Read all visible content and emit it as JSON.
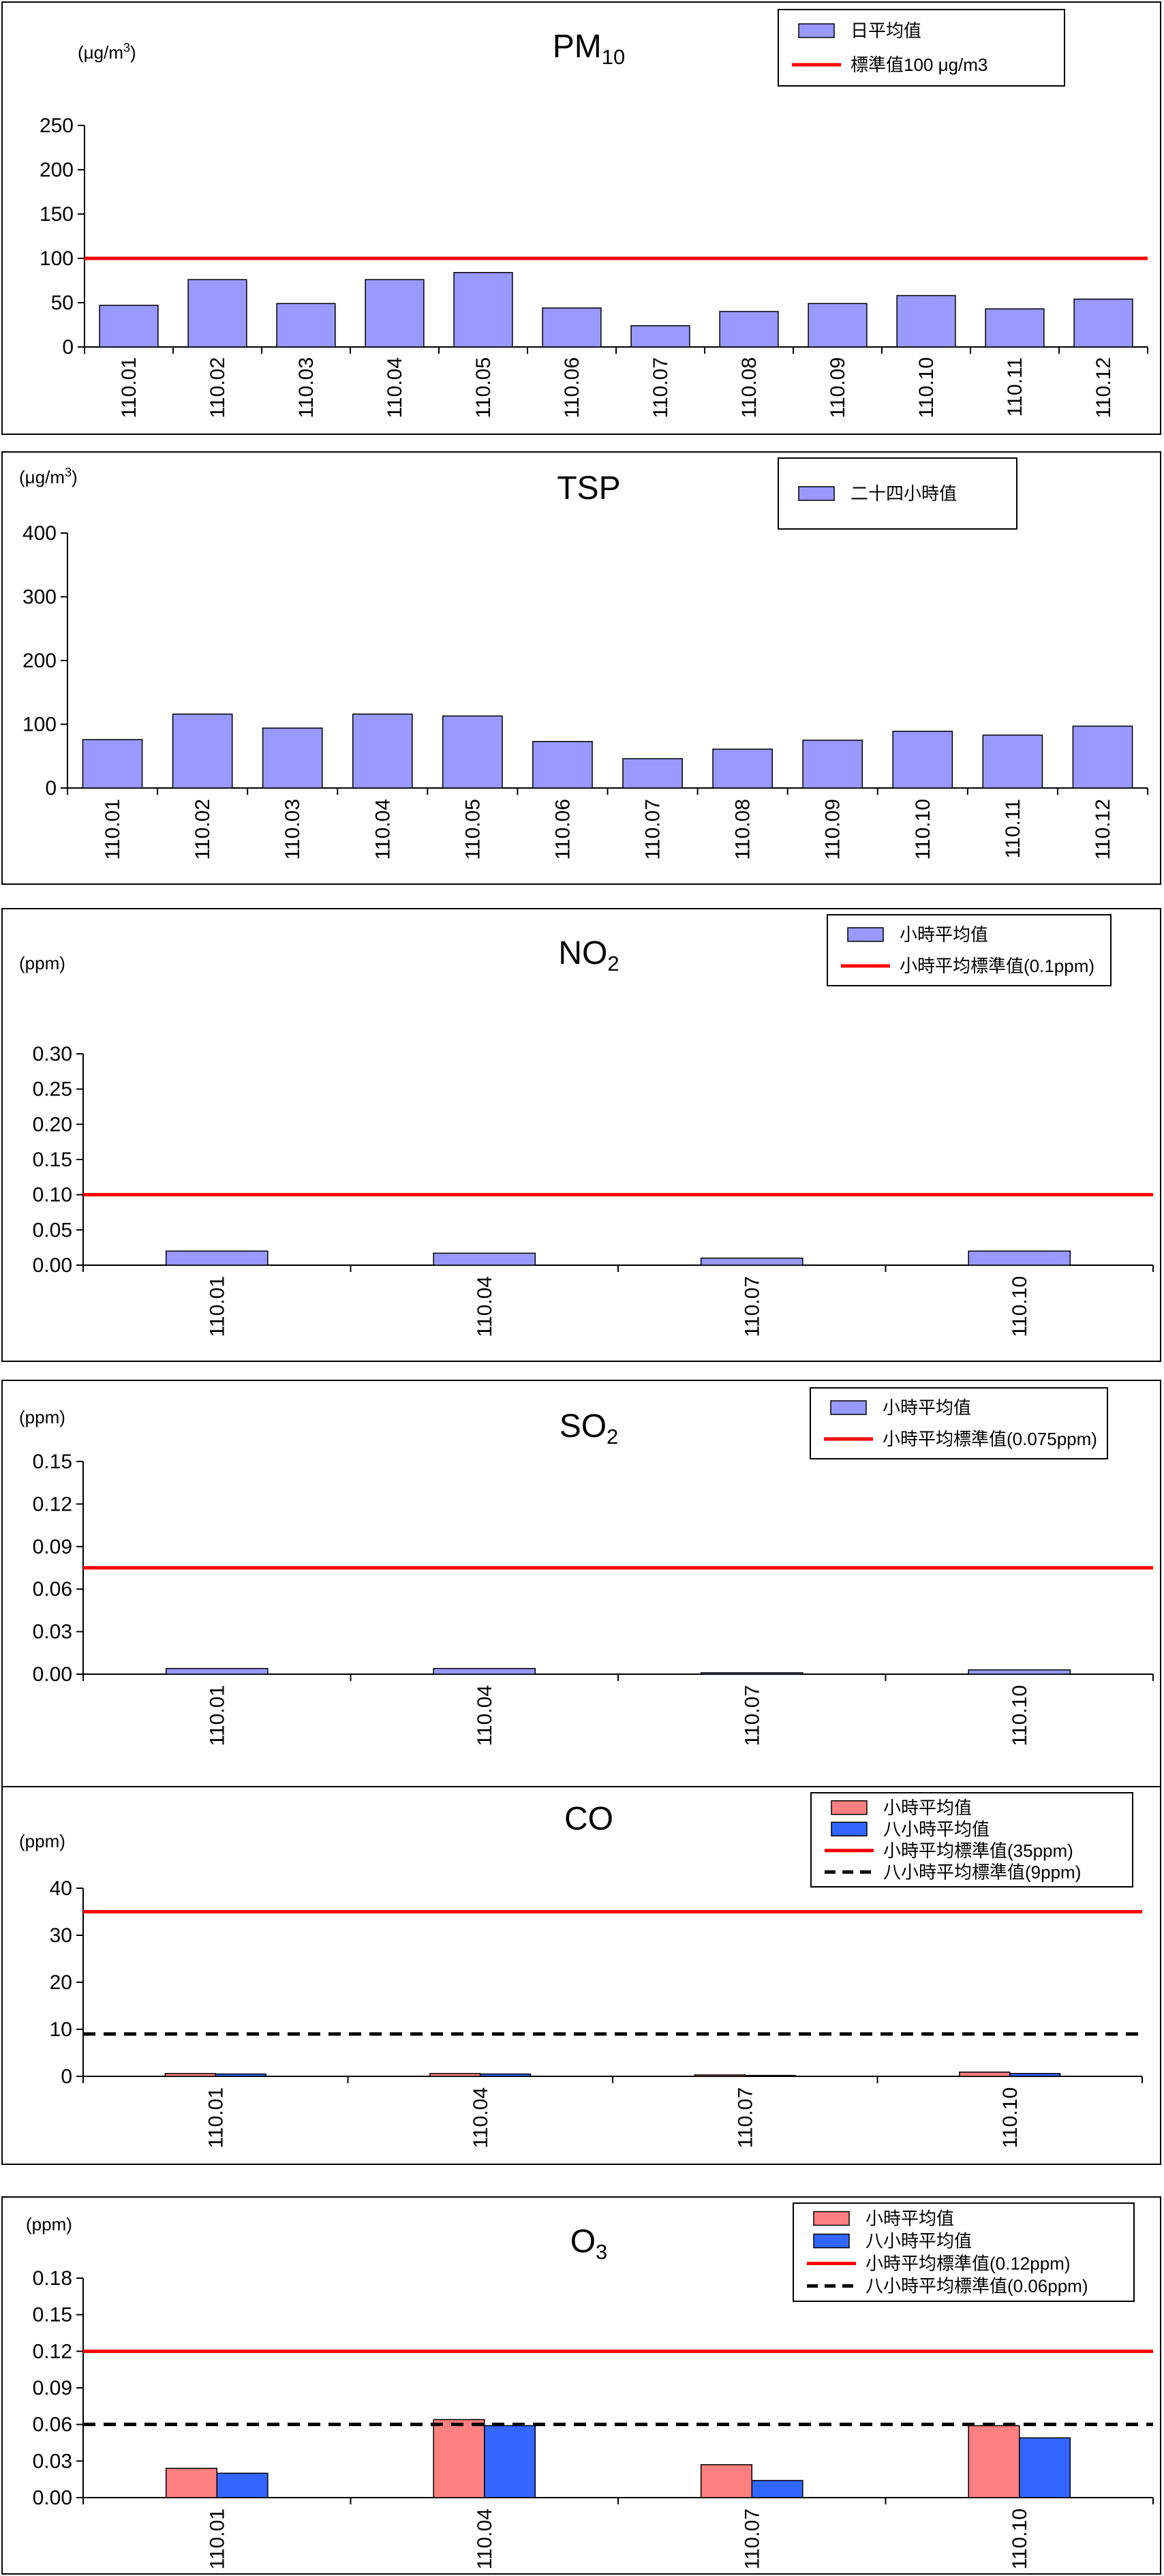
{
  "colors": {
    "bar_primary": "#9999ff",
    "bar_salmon": "#ff8080",
    "bar_blue": "#3366ff",
    "standard_red": "#ff0000",
    "standard_dashed": "#000000",
    "axis": "#000000"
  },
  "chart_data": [
    {
      "type": "bar",
      "title": "PM",
      "title_sub": "10",
      "unit_label": "(μg/m",
      "unit_sup": "3",
      "unit_close": ")",
      "categories": [
        "110.01",
        "110.02",
        "110.03",
        "110.04",
        "110.05",
        "110.06",
        "110.07",
        "110.08",
        "110.09",
        "110.10",
        "110.11",
        "110.12"
      ],
      "series": [
        {
          "name": "日平均值",
          "kind": "bar",
          "color_key": "bar_primary",
          "values": [
            47,
            76,
            49,
            76,
            84,
            44,
            24,
            40,
            49,
            58,
            43,
            54
          ]
        }
      ],
      "standards": [
        {
          "name": "標準值100 μg/m3",
          "value": 100,
          "style": "solid",
          "color_key": "standard_red"
        }
      ],
      "ylim": [
        0,
        250
      ],
      "yticks": [
        "0",
        "50",
        "100",
        "150",
        "200",
        "250"
      ],
      "ytick_values": [
        0,
        50,
        100,
        150,
        200,
        250
      ],
      "legend_position": "top-right",
      "grid": false
    },
    {
      "type": "bar",
      "title": "TSP",
      "title_sub": "",
      "unit_label": "(μg/m",
      "unit_sup": "3",
      "unit_close": ")",
      "categories": [
        "110.01",
        "110.02",
        "110.03",
        "110.04",
        "110.05",
        "110.06",
        "110.07",
        "110.08",
        "110.09",
        "110.10",
        "110.11",
        "110.12"
      ],
      "series": [
        {
          "name": "二十四小時值",
          "kind": "bar",
          "color_key": "bar_primary",
          "values": [
            76,
            116,
            94,
            116,
            113,
            73,
            46,
            61,
            75,
            89,
            83,
            97
          ]
        }
      ],
      "standards": [],
      "ylim": [
        0,
        400
      ],
      "yticks": [
        "0",
        "100",
        "200",
        "300",
        "400"
      ],
      "ytick_values": [
        0,
        100,
        200,
        300,
        400
      ],
      "legend_position": "top-right",
      "grid": false
    },
    {
      "type": "bar",
      "title": "NO",
      "title_sub": "2",
      "unit_label": "(ppm)",
      "unit_sup": "",
      "unit_close": "",
      "categories": [
        "110.01",
        "110.04",
        "110.07",
        "110.10"
      ],
      "series": [
        {
          "name": "小時平均值",
          "kind": "bar",
          "color_key": "bar_primary",
          "values": [
            0.02,
            0.017,
            0.01,
            0.02
          ]
        }
      ],
      "standards": [
        {
          "name": "小時平均標準值(0.1ppm)",
          "value": 0.1,
          "style": "solid",
          "color_key": "standard_red"
        }
      ],
      "ylim": [
        0,
        0.3
      ],
      "yticks": [
        "0.00",
        "0.05",
        "0.10",
        "0.15",
        "0.20",
        "0.25",
        "0.30"
      ],
      "ytick_values": [
        0,
        0.05,
        0.1,
        0.15,
        0.2,
        0.25,
        0.3
      ],
      "legend_position": "top-right",
      "grid": false
    },
    {
      "type": "bar",
      "title": "SO",
      "title_sub": "2",
      "unit_label": "(ppm)",
      "unit_sup": "",
      "unit_close": "",
      "categories": [
        "110.01",
        "110.04",
        "110.07",
        "110.10"
      ],
      "series": [
        {
          "name": "小時平均值",
          "kind": "bar",
          "color_key": "bar_primary",
          "values": [
            0.004,
            0.004,
            0.001,
            0.003
          ]
        }
      ],
      "standards": [
        {
          "name": "小時平均標準值(0.075ppm)",
          "value": 0.075,
          "style": "solid",
          "color_key": "standard_red"
        }
      ],
      "ylim": [
        0,
        0.15
      ],
      "yticks": [
        "0.00",
        "0.03",
        "0.06",
        "0.09",
        "0.12",
        "0.15"
      ],
      "ytick_values": [
        0,
        0.03,
        0.06,
        0.09,
        0.12,
        0.15
      ],
      "legend_position": "top-right",
      "grid": false
    },
    {
      "type": "bar",
      "title": "CO",
      "title_sub": "",
      "unit_label": "(ppm)",
      "unit_sup": "",
      "unit_close": "",
      "categories": [
        "110.01",
        "110.04",
        "110.07",
        "110.10"
      ],
      "series": [
        {
          "name": "小時平均值",
          "kind": "bar",
          "color_key": "bar_salmon",
          "values": [
            0.6,
            0.6,
            0.3,
            0.9
          ]
        },
        {
          "name": "八小時平均值",
          "kind": "bar",
          "color_key": "bar_blue",
          "values": [
            0.5,
            0.5,
            0.2,
            0.6
          ]
        }
      ],
      "standards": [
        {
          "name": "小時平均標準值(35ppm)",
          "value": 35,
          "style": "solid",
          "color_key": "standard_red"
        },
        {
          "name": "八小時平均標準值(9ppm)",
          "value": 9,
          "style": "dashed",
          "color_key": "standard_dashed"
        }
      ],
      "ylim": [
        0,
        40
      ],
      "yticks": [
        "0",
        "10",
        "20",
        "30",
        "40"
      ],
      "ytick_values": [
        0,
        10,
        20,
        30,
        40
      ],
      "legend_position": "top-right",
      "grid": false
    },
    {
      "type": "bar",
      "title": "O",
      "title_sub": "3",
      "unit_label": "(ppm)",
      "unit_sup": "",
      "unit_close": "",
      "categories": [
        "110.01",
        "110.04",
        "110.07",
        "110.10"
      ],
      "series": [
        {
          "name": "小時平均值",
          "kind": "bar",
          "color_key": "bar_salmon",
          "values": [
            0.024,
            0.064,
            0.027,
            0.059
          ]
        },
        {
          "name": "八小時平均值",
          "kind": "bar",
          "color_key": "bar_blue",
          "values": [
            0.02,
            0.059,
            0.014,
            0.049
          ]
        }
      ],
      "standards": [
        {
          "name": "小時平均標準值(0.12ppm)",
          "value": 0.12,
          "style": "solid",
          "color_key": "standard_red"
        },
        {
          "name": "八小時平均標準值(0.06ppm)",
          "value": 0.06,
          "style": "dashed",
          "color_key": "standard_dashed"
        }
      ],
      "ylim": [
        0,
        0.18
      ],
      "yticks": [
        "0.00",
        "0.03",
        "0.06",
        "0.09",
        "0.12",
        "0.15",
        "0.18"
      ],
      "ytick_values": [
        0,
        0.03,
        0.06,
        0.09,
        0.12,
        0.15,
        0.18
      ],
      "legend_position": "top-right",
      "grid": false
    }
  ]
}
